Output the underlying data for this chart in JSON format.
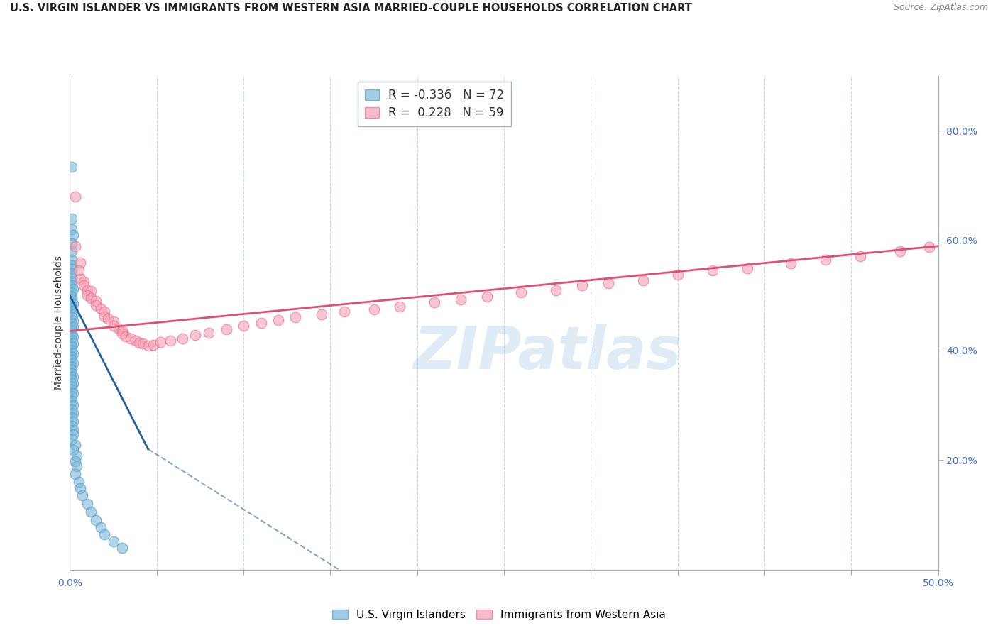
{
  "title": "U.S. VIRGIN ISLANDER VS IMMIGRANTS FROM WESTERN ASIA MARRIED-COUPLE HOUSEHOLDS CORRELATION CHART",
  "source": "Source: ZipAtlas.com",
  "ylabel": "Married-couple Households",
  "blue_label": "U.S. Virgin Islanders",
  "pink_label": "Immigrants from Western Asia",
  "blue_R": -0.336,
  "blue_N": 72,
  "pink_R": 0.228,
  "pink_N": 59,
  "blue_color": "#7ab8d9",
  "pink_color": "#f4a0b5",
  "blue_edge_color": "#5a9dc0",
  "pink_edge_color": "#e87090",
  "blue_line_color": "#2060a0",
  "pink_line_color": "#e05070",
  "blue_points": [
    [
      0.001,
      0.735
    ],
    [
      0.001,
      0.64
    ],
    [
      0.001,
      0.62
    ],
    [
      0.002,
      0.61
    ],
    [
      0.001,
      0.595
    ],
    [
      0.001,
      0.58
    ],
    [
      0.001,
      0.565
    ],
    [
      0.001,
      0.555
    ],
    [
      0.001,
      0.548
    ],
    [
      0.001,
      0.54
    ],
    [
      0.001,
      0.533
    ],
    [
      0.001,
      0.525
    ],
    [
      0.001,
      0.518
    ],
    [
      0.002,
      0.512
    ],
    [
      0.001,
      0.505
    ],
    [
      0.001,
      0.498
    ],
    [
      0.001,
      0.492
    ],
    [
      0.002,
      0.485
    ],
    [
      0.001,
      0.478
    ],
    [
      0.001,
      0.472
    ],
    [
      0.002,
      0.466
    ],
    [
      0.001,
      0.46
    ],
    [
      0.002,
      0.454
    ],
    [
      0.001,
      0.448
    ],
    [
      0.002,
      0.442
    ],
    [
      0.001,
      0.436
    ],
    [
      0.001,
      0.43
    ],
    [
      0.002,
      0.424
    ],
    [
      0.001,
      0.418
    ],
    [
      0.002,
      0.412
    ],
    [
      0.001,
      0.406
    ],
    [
      0.001,
      0.4
    ],
    [
      0.002,
      0.394
    ],
    [
      0.001,
      0.388
    ],
    [
      0.001,
      0.382
    ],
    [
      0.002,
      0.376
    ],
    [
      0.001,
      0.37
    ],
    [
      0.001,
      0.364
    ],
    [
      0.001,
      0.358
    ],
    [
      0.002,
      0.352
    ],
    [
      0.001,
      0.346
    ],
    [
      0.002,
      0.34
    ],
    [
      0.001,
      0.334
    ],
    [
      0.001,
      0.328
    ],
    [
      0.002,
      0.322
    ],
    [
      0.001,
      0.315
    ],
    [
      0.001,
      0.308
    ],
    [
      0.002,
      0.3
    ],
    [
      0.001,
      0.292
    ],
    [
      0.002,
      0.285
    ],
    [
      0.001,
      0.278
    ],
    [
      0.002,
      0.27
    ],
    [
      0.001,
      0.262
    ],
    [
      0.002,
      0.255
    ],
    [
      0.002,
      0.247
    ],
    [
      0.001,
      0.238
    ],
    [
      0.003,
      0.228
    ],
    [
      0.002,
      0.218
    ],
    [
      0.004,
      0.208
    ],
    [
      0.003,
      0.198
    ],
    [
      0.004,
      0.188
    ],
    [
      0.003,
      0.175
    ],
    [
      0.005,
      0.16
    ],
    [
      0.006,
      0.148
    ],
    [
      0.007,
      0.135
    ],
    [
      0.01,
      0.12
    ],
    [
      0.012,
      0.106
    ],
    [
      0.015,
      0.09
    ],
    [
      0.018,
      0.078
    ],
    [
      0.02,
      0.065
    ],
    [
      0.025,
      0.052
    ],
    [
      0.03,
      0.04
    ]
  ],
  "pink_points": [
    [
      0.003,
      0.68
    ],
    [
      0.003,
      0.59
    ],
    [
      0.006,
      0.56
    ],
    [
      0.005,
      0.545
    ],
    [
      0.006,
      0.53
    ],
    [
      0.008,
      0.525
    ],
    [
      0.008,
      0.518
    ],
    [
      0.01,
      0.51
    ],
    [
      0.012,
      0.508
    ],
    [
      0.01,
      0.5
    ],
    [
      0.012,
      0.495
    ],
    [
      0.015,
      0.49
    ],
    [
      0.015,
      0.482
    ],
    [
      0.018,
      0.476
    ],
    [
      0.02,
      0.47
    ],
    [
      0.02,
      0.462
    ],
    [
      0.022,
      0.458
    ],
    [
      0.025,
      0.452
    ],
    [
      0.025,
      0.445
    ],
    [
      0.028,
      0.44
    ],
    [
      0.03,
      0.436
    ],
    [
      0.03,
      0.43
    ],
    [
      0.032,
      0.425
    ],
    [
      0.035,
      0.422
    ],
    [
      0.038,
      0.418
    ],
    [
      0.04,
      0.414
    ],
    [
      0.042,
      0.412
    ],
    [
      0.045,
      0.408
    ],
    [
      0.048,
      0.41
    ],
    [
      0.052,
      0.415
    ],
    [
      0.058,
      0.418
    ],
    [
      0.065,
      0.422
    ],
    [
      0.072,
      0.428
    ],
    [
      0.08,
      0.432
    ],
    [
      0.09,
      0.438
    ],
    [
      0.1,
      0.445
    ],
    [
      0.11,
      0.45
    ],
    [
      0.12,
      0.455
    ],
    [
      0.13,
      0.46
    ],
    [
      0.145,
      0.465
    ],
    [
      0.158,
      0.47
    ],
    [
      0.175,
      0.475
    ],
    [
      0.19,
      0.48
    ],
    [
      0.21,
      0.488
    ],
    [
      0.225,
      0.492
    ],
    [
      0.24,
      0.498
    ],
    [
      0.26,
      0.505
    ],
    [
      0.28,
      0.51
    ],
    [
      0.295,
      0.518
    ],
    [
      0.31,
      0.522
    ],
    [
      0.33,
      0.528
    ],
    [
      0.35,
      0.538
    ],
    [
      0.37,
      0.545
    ],
    [
      0.39,
      0.55
    ],
    [
      0.415,
      0.558
    ],
    [
      0.435,
      0.565
    ],
    [
      0.455,
      0.572
    ],
    [
      0.478,
      0.58
    ],
    [
      0.495,
      0.588
    ]
  ],
  "xlim": [
    0.0,
    0.5
  ],
  "ylim": [
    0.0,
    0.9
  ],
  "right_yticks": [
    0.2,
    0.4,
    0.6,
    0.8
  ],
  "right_yticklabels": [
    "20.0%",
    "40.0%",
    "60.0%",
    "80.0%"
  ],
  "blue_line_solid": [
    [
      0.0,
      0.5
    ],
    [
      0.045,
      0.22
    ]
  ],
  "blue_line_dash": [
    [
      0.045,
      0.22
    ],
    [
      0.18,
      -0.05
    ]
  ],
  "pink_line": [
    [
      0.0,
      0.435
    ],
    [
      0.5,
      0.59
    ]
  ],
  "xtick_positions": [
    0.0,
    0.05,
    0.1,
    0.15,
    0.2,
    0.25,
    0.3,
    0.35,
    0.4,
    0.45,
    0.5
  ],
  "x_label_show": [
    true,
    false,
    false,
    false,
    false,
    false,
    false,
    false,
    false,
    false,
    true
  ],
  "watermark_text": "ZIPatlas",
  "background_color": "#ffffff",
  "grid_color": "#c8d8e8",
  "spine_color": "#aaaaaa",
  "title_fontsize": 10.5,
  "source_fontsize": 9,
  "axis_label_fontsize": 10,
  "tick_fontsize": 10,
  "legend_fontsize": 12
}
